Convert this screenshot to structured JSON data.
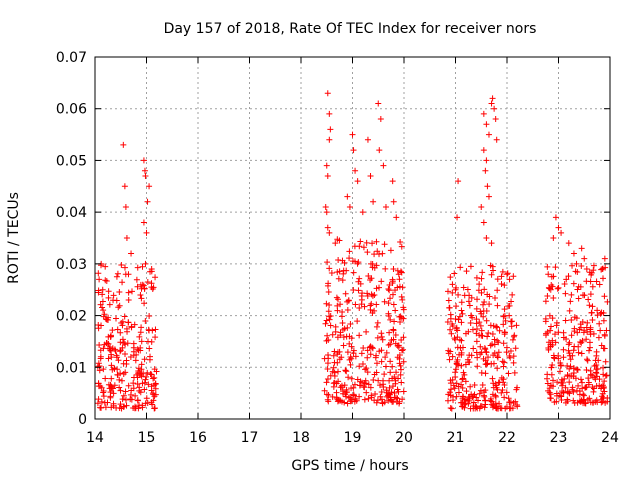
{
  "chart_data": {
    "type": "scatter",
    "title": "Day 157 of 2018, Rate Of TEC Index for receiver nors",
    "xlabel": "GPS time / hours",
    "ylabel": "ROTI / TECUs",
    "xlim": [
      14,
      24
    ],
    "ylim": [
      0,
      0.07
    ],
    "xticks": [
      "14",
      "15",
      "16",
      "17",
      "18",
      "19",
      "20",
      "21",
      "22",
      "23",
      "24"
    ],
    "yticks": [
      "0",
      "0.01",
      "0.02",
      "0.03",
      "0.04",
      "0.05",
      "0.06",
      "0.07"
    ],
    "grid": true,
    "marker": "+",
    "color": "#ff0000",
    "clusters": [
      {
        "x_range": [
          14.05,
          15.2
        ],
        "typical_range": [
          0.002,
          0.02
        ],
        "spread_top": 0.03,
        "points": [
          [
            14.55,
            0.053
          ],
          [
            14.58,
            0.045
          ],
          [
            14.6,
            0.041
          ],
          [
            14.62,
            0.035
          ],
          [
            14.7,
            0.032
          ],
          [
            14.95,
            0.05
          ],
          [
            14.97,
            0.048
          ],
          [
            14.98,
            0.047
          ],
          [
            15.05,
            0.045
          ],
          [
            15.02,
            0.042
          ],
          [
            14.08,
            0.027
          ],
          [
            14.12,
            0.03
          ],
          [
            14.15,
            0.025
          ],
          [
            14.95,
            0.038
          ],
          [
            15.0,
            0.036
          ],
          [
            14.98,
            0.03
          ],
          [
            15.1,
            0.029
          ],
          [
            14.65,
            0.028
          ]
        ]
      },
      {
        "x_range": [
          18.45,
          20.0
        ],
        "typical_range": [
          0.003,
          0.025
        ],
        "spread_top": 0.035,
        "points": [
          [
            18.52,
            0.063
          ],
          [
            18.55,
            0.059
          ],
          [
            18.57,
            0.056
          ],
          [
            18.55,
            0.054
          ],
          [
            18.5,
            0.049
          ],
          [
            18.52,
            0.047
          ],
          [
            18.48,
            0.041
          ],
          [
            18.5,
            0.04
          ],
          [
            18.52,
            0.037
          ],
          [
            18.55,
            0.036
          ],
          [
            19.0,
            0.055
          ],
          [
            19.02,
            0.052
          ],
          [
            19.05,
            0.048
          ],
          [
            19.1,
            0.046
          ],
          [
            19.3,
            0.054
          ],
          [
            19.35,
            0.047
          ],
          [
            19.5,
            0.061
          ],
          [
            19.55,
            0.058
          ],
          [
            19.52,
            0.052
          ],
          [
            19.6,
            0.049
          ],
          [
            19.78,
            0.046
          ],
          [
            19.8,
            0.042
          ],
          [
            18.9,
            0.043
          ],
          [
            18.95,
            0.041
          ],
          [
            19.2,
            0.04
          ],
          [
            19.85,
            0.039
          ],
          [
            19.4,
            0.042
          ],
          [
            19.65,
            0.041
          ]
        ]
      },
      {
        "x_range": [
          20.85,
          22.2
        ],
        "typical_range": [
          0.002,
          0.02
        ],
        "spread_top": 0.03,
        "points": [
          [
            21.05,
            0.046
          ],
          [
            21.03,
            0.039
          ],
          [
            21.55,
            0.059
          ],
          [
            21.6,
            0.057
          ],
          [
            21.65,
            0.055
          ],
          [
            21.7,
            0.061
          ],
          [
            21.72,
            0.062
          ],
          [
            21.75,
            0.06
          ],
          [
            21.78,
            0.058
          ],
          [
            21.8,
            0.054
          ],
          [
            21.55,
            0.052
          ],
          [
            21.6,
            0.05
          ],
          [
            21.58,
            0.048
          ],
          [
            21.62,
            0.045
          ],
          [
            21.65,
            0.043
          ],
          [
            21.5,
            0.041
          ],
          [
            21.55,
            0.038
          ],
          [
            21.6,
            0.035
          ],
          [
            21.7,
            0.034
          ],
          [
            21.0,
            0.025
          ],
          [
            21.05,
            0.024
          ],
          [
            22.0,
            0.028
          ],
          [
            22.05,
            0.027
          ],
          [
            22.1,
            0.024
          ],
          [
            21.3,
            0.02
          ]
        ]
      },
      {
        "x_range": [
          22.75,
          23.95
        ],
        "typical_range": [
          0.003,
          0.02
        ],
        "spread_top": 0.03,
        "points": [
          [
            22.95,
            0.039
          ],
          [
            23.0,
            0.037
          ],
          [
            22.9,
            0.035
          ],
          [
            23.05,
            0.036
          ],
          [
            23.2,
            0.034
          ],
          [
            23.3,
            0.032
          ],
          [
            23.35,
            0.03
          ],
          [
            23.45,
            0.033
          ],
          [
            23.5,
            0.031
          ],
          [
            23.55,
            0.029
          ],
          [
            23.9,
            0.031
          ],
          [
            23.85,
            0.029
          ],
          [
            23.8,
            0.026
          ],
          [
            22.8,
            0.028
          ],
          [
            22.85,
            0.025
          ],
          [
            23.15,
            0.027
          ],
          [
            23.25,
            0.024
          ],
          [
            23.6,
            0.022
          ],
          [
            23.75,
            0.021
          ]
        ]
      }
    ]
  }
}
